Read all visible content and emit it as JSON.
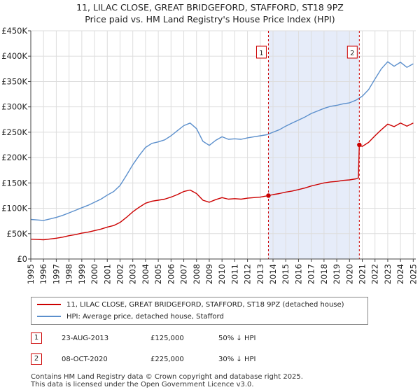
{
  "title_line1": "11, LILAC CLOSE, GREAT BRIDGEFORD, STAFFORD, ST18 9PZ",
  "title_line2": "Price paid vs. HM Land Registry's House Price Index (HPI)",
  "colors": {
    "property": "#cc0000",
    "hpi": "#5b8fcc",
    "shade": "#dde6f7",
    "grid": "#dddddd"
  },
  "chart_data": {
    "type": "line",
    "title": "11, LILAC CLOSE, GREAT BRIDGEFORD, STAFFORD, ST18 9PZ — Price paid vs. HM Land Registry's House Price Index (HPI)",
    "xlabel": "",
    "ylabel": "",
    "xlim": [
      1995.0,
      2025.2
    ],
    "ylim": [
      0,
      450000
    ],
    "grid": true,
    "y_ticks": [
      {
        "value": 0,
        "label": "£0"
      },
      {
        "value": 50000,
        "label": "£50K"
      },
      {
        "value": 100000,
        "label": "£100K"
      },
      {
        "value": 150000,
        "label": "£150K"
      },
      {
        "value": 200000,
        "label": "£200K"
      },
      {
        "value": 250000,
        "label": "£250K"
      },
      {
        "value": 300000,
        "label": "£300K"
      },
      {
        "value": 350000,
        "label": "£350K"
      },
      {
        "value": 400000,
        "label": "£400K"
      },
      {
        "value": 450000,
        "label": "£450K"
      }
    ],
    "x_ticks": [
      "1995",
      "1996",
      "1997",
      "1998",
      "1999",
      "2000",
      "2001",
      "2002",
      "2003",
      "2004",
      "2005",
      "2006",
      "2007",
      "2008",
      "2009",
      "2010",
      "2011",
      "2012",
      "2013",
      "2014",
      "2015",
      "2016",
      "2017",
      "2018",
      "2019",
      "2020",
      "2021",
      "2022",
      "2023",
      "2024",
      "2025"
    ],
    "shaded_region": [
      2013.64,
      2020.77
    ],
    "series": [
      {
        "name": "11, LILAC CLOSE, GREAT BRIDGEFORD, STAFFORD, ST18 9PZ (detached house)",
        "color": "#cc0000",
        "x": [
          1995.0,
          1995.5,
          1996.0,
          1996.5,
          1997.0,
          1997.5,
          1998.0,
          1998.5,
          1999.0,
          1999.5,
          2000.0,
          2000.5,
          2001.0,
          2001.5,
          2002.0,
          2002.5,
          2003.0,
          2003.5,
          2004.0,
          2004.5,
          2005.0,
          2005.5,
          2006.0,
          2006.5,
          2007.0,
          2007.5,
          2008.0,
          2008.5,
          2009.0,
          2009.5,
          2010.0,
          2010.5,
          2011.0,
          2011.5,
          2012.0,
          2012.5,
          2013.0,
          2013.64,
          2014.0,
          2014.5,
          2015.0,
          2015.5,
          2016.0,
          2016.5,
          2017.0,
          2017.5,
          2018.0,
          2018.5,
          2019.0,
          2019.5,
          2020.0,
          2020.5,
          2020.7,
          2020.77,
          2021.0,
          2021.5,
          2022.0,
          2022.5,
          2023.0,
          2023.5,
          2024.0,
          2024.5,
          2025.0
        ],
        "values": [
          39000,
          38500,
          38000,
          39500,
          41000,
          43000,
          46000,
          48000,
          51000,
          53000,
          56000,
          59000,
          63000,
          66000,
          72000,
          82000,
          93000,
          102000,
          110000,
          114000,
          116000,
          118000,
          122000,
          127000,
          133000,
          136000,
          129000,
          116000,
          112000,
          117000,
          121000,
          118000,
          119000,
          118000,
          120000,
          121000,
          122000,
          125000,
          127000,
          129000,
          132000,
          134000,
          137000,
          140000,
          144000,
          147000,
          150000,
          152000,
          153000,
          155000,
          156000,
          158000,
          160000,
          225000,
          222000,
          230000,
          243000,
          255000,
          266000,
          261000,
          268000,
          262000,
          268000
        ]
      },
      {
        "name": "HPI: Average price, detached house, Stafford",
        "color": "#5b8fcc",
        "x": [
          1995.0,
          1995.5,
          1996.0,
          1996.5,
          1997.0,
          1997.5,
          1998.0,
          1998.5,
          1999.0,
          1999.5,
          2000.0,
          2000.5,
          2001.0,
          2001.5,
          2002.0,
          2002.5,
          2003.0,
          2003.5,
          2004.0,
          2004.5,
          2005.0,
          2005.5,
          2006.0,
          2006.5,
          2007.0,
          2007.5,
          2008.0,
          2008.5,
          2009.0,
          2009.5,
          2010.0,
          2010.5,
          2011.0,
          2011.5,
          2012.0,
          2012.5,
          2013.0,
          2013.5,
          2014.0,
          2014.5,
          2015.0,
          2015.5,
          2016.0,
          2016.5,
          2017.0,
          2017.5,
          2018.0,
          2018.5,
          2019.0,
          2019.5,
          2020.0,
          2020.5,
          2021.0,
          2021.5,
          2022.0,
          2022.5,
          2023.0,
          2023.5,
          2024.0,
          2024.5,
          2025.0
        ],
        "values": [
          78000,
          77000,
          76000,
          79000,
          82000,
          86000,
          91000,
          96000,
          101000,
          106000,
          112000,
          118000,
          126000,
          133000,
          145000,
          165000,
          186000,
          204000,
          220000,
          228000,
          231000,
          235000,
          243000,
          253000,
          263000,
          268000,
          257000,
          232000,
          224000,
          234000,
          241000,
          236000,
          237000,
          236000,
          239000,
          241000,
          243000,
          245000,
          250000,
          255000,
          262000,
          268000,
          274000,
          280000,
          287000,
          292000,
          297000,
          301000,
          303000,
          306000,
          308000,
          313000,
          321000,
          334000,
          355000,
          375000,
          389000,
          380000,
          388000,
          378000,
          385000
        ]
      }
    ],
    "annotations": [
      {
        "label": "1",
        "x": 2013.64,
        "value": 125000
      },
      {
        "label": "2",
        "x": 2020.77,
        "value": 225000
      }
    ]
  },
  "legend": {
    "property_label": "11, LILAC CLOSE, GREAT BRIDGEFORD, STAFFORD, ST18 9PZ (detached house)",
    "hpi_label": "HPI: Average price, detached house, Stafford"
  },
  "sales": [
    {
      "num": "1",
      "date": "23-AUG-2013",
      "price": "£125,000",
      "hpi": "50% ↓ HPI"
    },
    {
      "num": "2",
      "date": "08-OCT-2020",
      "price": "£225,000",
      "hpi": "30% ↓ HPI"
    }
  ],
  "footer": {
    "line1": "Contains HM Land Registry data © Crown copyright and database right 2025.",
    "line2": "This data is licensed under the Open Government Licence v3.0."
  }
}
